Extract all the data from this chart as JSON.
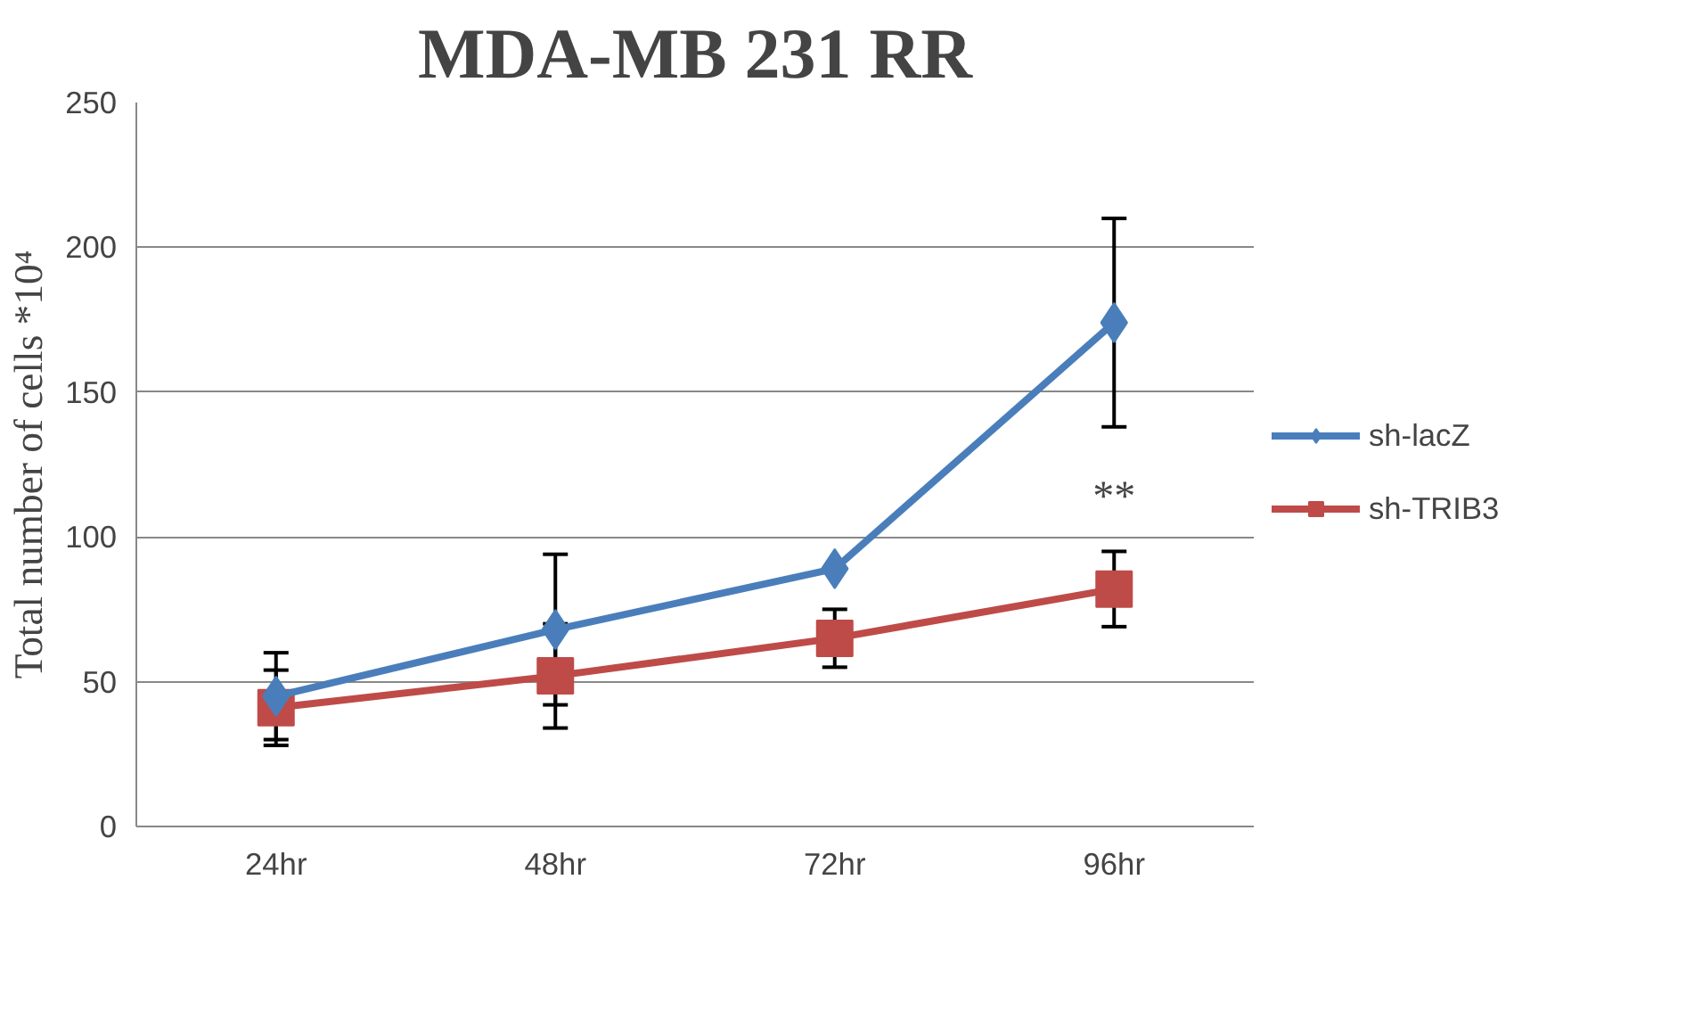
{
  "chart_data": {
    "type": "line",
    "title": "MDA-MB 231 RR",
    "ylabel": "Total number of cells *10⁴",
    "categories": [
      "24hr",
      "48hr",
      "72hr",
      "96hr"
    ],
    "series": [
      {
        "name": "sh-lacZ",
        "color": "#4a7ebb",
        "marker": "diamond",
        "values": [
          45,
          68,
          89,
          174
        ],
        "errors": [
          15,
          26,
          null,
          36
        ]
      },
      {
        "name": "sh-TRIB3",
        "color": "#be4b48",
        "marker": "square",
        "values": [
          41,
          52,
          65,
          82
        ],
        "errors": [
          13,
          18,
          10,
          13
        ]
      }
    ],
    "ylim": [
      0,
      250
    ],
    "yticks": [
      0,
      50,
      100,
      150,
      200,
      250
    ],
    "grid": "y",
    "legend": "right",
    "annotations": [
      "**"
    ]
  }
}
